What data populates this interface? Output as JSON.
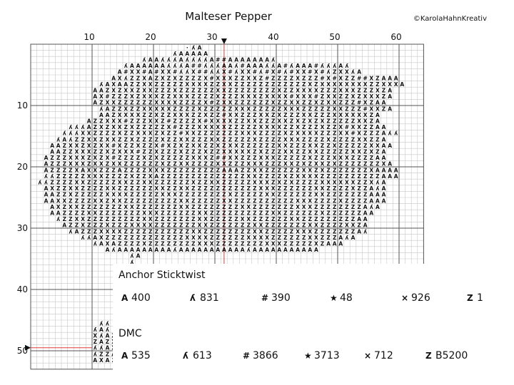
{
  "title": "Malteser Pepper",
  "copyright": "©KarolaHahnKreativ",
  "chart_data": {
    "type": "cross-stitch-pattern",
    "column_ticks": [
      "10",
      "20",
      "30",
      "40",
      "50",
      "60"
    ],
    "row_ticks": [
      "10",
      "20",
      "30",
      "40",
      "50"
    ],
    "center_column": 32,
    "center_row": 50,
    "pattern_rows": [
      {
        "row": 1,
        "cells": "                         ·ʎA"
      },
      {
        "row": 2,
        "cells": "                       ʎAAAAA"
      },
      {
        "row": 3,
        "cells": "                  ʎAAʎʎʎAʎʎʎʎA##AAAAAAAʎ"
      },
      {
        "row": 4,
        "cells": "               ʎAAAAAAʎʎʎA##ʎʎʎAAʎ#AAAʎʎA#ʎAAA#ʎʎʎAʎ"
      },
      {
        "row": 5,
        "cells": "              A#XX#A#XX#ʎʎX##ʎʎX#ʎXX#ʎ#X#ʎ#XX#X#ʎZXXʎA"
      },
      {
        "row": 6,
        "cells": "             AXʎZZXAZXZXZZZZX#XXXZZXXZ#ZZZZXZZZ#X#XZZ##XZAAA"
      },
      {
        "row": 7,
        "cells": "           ʎAXAAZZXXZZZZZXXXXZZXXZZZZZZZZZZZZXZXXXXXXXXZZXXXA"
      },
      {
        "row": 8,
        "cells": "          AAZXZXXZXXZZZXZZZZZZXXZZZZZZZZXZZXXXXZZZXXXZZZXZA"
      },
      {
        "row": 9,
        "cells": "          AX#ZZZXZXXXZZXXXZZZZXZZZXXXZXXXX#XXX#ZXXZZXZXXXZA"
      },
      {
        "row": 10,
        "cells": "          AZXXZZZZZZXXXXZZZZX#ZXXZZZZZZXZZXXZZXZXXZZZ#XZAA"
      },
      {
        "row": 11,
        "cells": "           ʎAZZXZZXXXXXZZZZXZZZZZXXXZZZZZXXXZZZZZXXZZZ#XXZA"
      },
      {
        "row": 12,
        "cells": "           AAZXXXXZZXZZXXXZZXZZ#XXZZZXXZXZZZXXZZZXXXXXXZA"
      },
      {
        "row": 13,
        "cells": "         AZZXXX#ZZZXXZ#ZZZZX#XXXXZZXXZZZXXZXZXZXZZZZZXXZA"
      },
      {
        "row": 14,
        "cells": "      ʎʎʎAZXZXXZXZZZZZX#ZZZXXXXXZZZZZXXXXZZXZZZXZZX#XXZZAA"
      },
      {
        "row": 15,
        "cells": "     ʎʎʎXXZZZZXZZXXXZXZZ#XXZZZZZZZXXXZZZZXZXXXXZZZXX#XZZZAʎʎ"
      },
      {
        "row": 16,
        "cells": "    ʎAʎZZXXZXXZZXZZZZXZZXXZZZXXZZZZZXZZZZXXXZZZZXZZZZXXZZA"
      },
      {
        "row": 17,
        "cells": "   AAZXXZXZXX#XZZXZZX#XZXZXXZZXZXXZZZZZZXXZZZXXZZXZZZZZXXAA"
      },
      {
        "row": 18,
        "cells": "   AAZZXXXZZXZXXX#ZZXZZZXZZZXZZXXXXXZXZZZXXZZXXZZZZZXXZXZA"
      },
      {
        "row": 19,
        "cells": "  AZZZXXXZXZX#ZZZZXZXZZZZZXXXZ##XXZZZXXXZZZZZXZZZXXXZZZZAA"
      },
      {
        "row": 20,
        "cells": "  AZZZXXXZXXZXXZZZZZZXZZXXZZZZXXZZZXXXZZZXXZXZXXZXZZZZZZZXA"
      },
      {
        "row": 21,
        "cells": "  AZZZZXAXXZZZAZZZZXXXZZZZZZZZZAAAZZXXZZZZZZXXZXZZZZZZZXAAAA"
      },
      {
        "row": 22,
        "cells": "  ʎʎZZZZZXXXZZZZXZZXAZZZZZZZZZZZZZZXXZZZZXZXXXXZZZZZZZZZZAAA"
      },
      {
        "row": 23,
        "cells": " ʎʎZZZZXXZZZZZXXZZXXZZZZZZXZZXXZZZZZXXXZXZXZZZZXXXXXXZZXʎA"
      },
      {
        "row": 24,
        "cells": "  AXZZXXZZZZXXZZZZZZXXZZXXZZZZZZZZZZZXXXZZZZZZXXZZZZXZZAʎA"
      },
      {
        "row": 25,
        "cells": "  AAZZXZZZZZXXXXZZZZZXXXZZZZZZZZXZZZZZXXZZZZZZXXZZZZZZZAAA"
      },
      {
        "row": 26,
        "cells": "  AAXXZZZZXXZXXZZZZZZZZZXXZZZZZXXZZZZZZZZZZXXXZZZZXZZZZAAA"
      },
      {
        "row": 27,
        "cells": "   AXZXXZZZZZZZXXZZZZZZZXXZZZZZZZZXXZZZZZZZXXXZZZZZZZZAʎA"
      },
      {
        "row": 28,
        "cells": "   AAZZZZXXZZZZZZZXXXZZZZZZXXZZZZZZZZZZXXZZZZZZXZZZZZZAA"
      },
      {
        "row": 29,
        "cells": "    ʎZZXXZZZZZZZZZXXZZZZZZZXXZZZZZXXZZZZZZXXZZZZZZZZZAA"
      },
      {
        "row": 30,
        "cells": "     AZZXZZZXZZZXXXXZZZZZZZXXZZZZZZZXXZZZZZZZXXZZZZXXZA"
      },
      {
        "row": 31,
        "cells": "      ʎAZZZXXXXZZZZZZZZZZZXXZZZZZZZZXXZZZZZXXXZZZZZZZAʎ"
      },
      {
        "row": 32,
        "cells": "        ʎʎAXZZZZZZZZZZZZZXXXXZZZZZZXXXXZZZZZZXXZZZAʎA"
      },
      {
        "row": 33,
        "cells": "          ʎAXAZZZZXZZZZZZZZXXXZZZZZZZZXXXZZZZZXZAAA"
      },
      {
        "row": 34,
        "cells": "            AʎAAAAAAAAAʎAAAAAAAAAAAʎAAAAAAAAAAA"
      },
      {
        "row": 35,
        "cells": "                ʎA"
      },
      {
        "row": 36,
        "cells": "                ʎ"
      },
      {
        "row": 46,
        "cells": "           ʎʎ"
      },
      {
        "row": 47,
        "cells": "          ʎAʎ"
      },
      {
        "row": 48,
        "cells": "          XʎAZ"
      },
      {
        "row": 49,
        "cells": "          ZAZX"
      },
      {
        "row": 50,
        "cells": "          ʎʎAX"
      },
      {
        "row": 51,
        "cells": "          ʎZZA"
      },
      {
        "row": 52,
        "cells": "          AXA2"
      }
    ]
  },
  "legend": {
    "anchor": {
      "title": "Anchor Sticktwist",
      "items": [
        {
          "symbol": "A",
          "code": "400"
        },
        {
          "symbol": "ʎ",
          "code": "831"
        },
        {
          "symbol": "#",
          "code": "390"
        },
        {
          "symbol": "★",
          "code": "48"
        },
        {
          "symbol": "×",
          "code": "926"
        },
        {
          "symbol": "Z",
          "code": "1"
        }
      ]
    },
    "dmc": {
      "title": "DMC",
      "items": [
        {
          "symbol": "A",
          "code": "535"
        },
        {
          "symbol": "ʎ",
          "code": "613"
        },
        {
          "symbol": "#",
          "code": "3866"
        },
        {
          "symbol": "★",
          "code": "3713"
        },
        {
          "symbol": "×",
          "code": "712"
        },
        {
          "symbol": "Z",
          "code": "B5200"
        }
      ]
    }
  },
  "colors": {
    "grid_minor": "#c8c8c8",
    "grid_major": "#555555",
    "center_line": "#e23c3c",
    "symbol": "#111111"
  }
}
